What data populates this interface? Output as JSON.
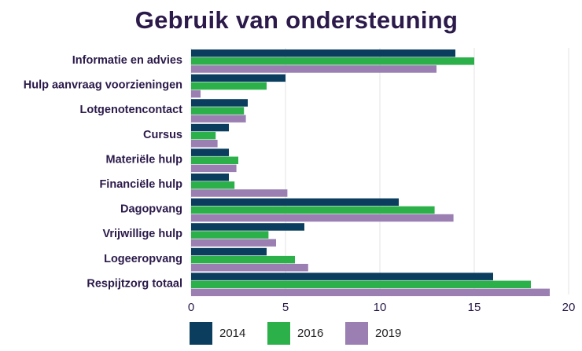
{
  "chart_data": {
    "type": "bar",
    "orientation": "horizontal",
    "title": "Gebruik van ondersteuning",
    "categories": [
      "Informatie en advies",
      "Hulp aanvraag voorzieningen",
      "Lotgenotencontact",
      "Cursus",
      "Materiële hulp",
      "Financiële hulp",
      "Dagopvang",
      "Vrijwillige hulp",
      "Logeeropvang",
      "Respijtzorg totaal"
    ],
    "series": [
      {
        "name": "2014",
        "color": "#0b3d5e",
        "values": [
          14,
          5,
          3,
          2,
          2,
          2,
          11,
          6,
          4,
          16
        ]
      },
      {
        "name": "2016",
        "color": "#2bb04a",
        "values": [
          15,
          4,
          2.8,
          1.3,
          2.5,
          2.3,
          12.9,
          4.1,
          5.5,
          18
        ]
      },
      {
        "name": "2019",
        "color": "#9b7fb3",
        "values": [
          13,
          0.5,
          2.9,
          1.4,
          2.4,
          5.1,
          13.9,
          4.5,
          6.2,
          19
        ]
      }
    ],
    "xlim": [
      0,
      20
    ],
    "xticks": [
      "0",
      "5",
      "10",
      "15",
      "20"
    ],
    "grid": true,
    "legend_position": "bottom"
  }
}
